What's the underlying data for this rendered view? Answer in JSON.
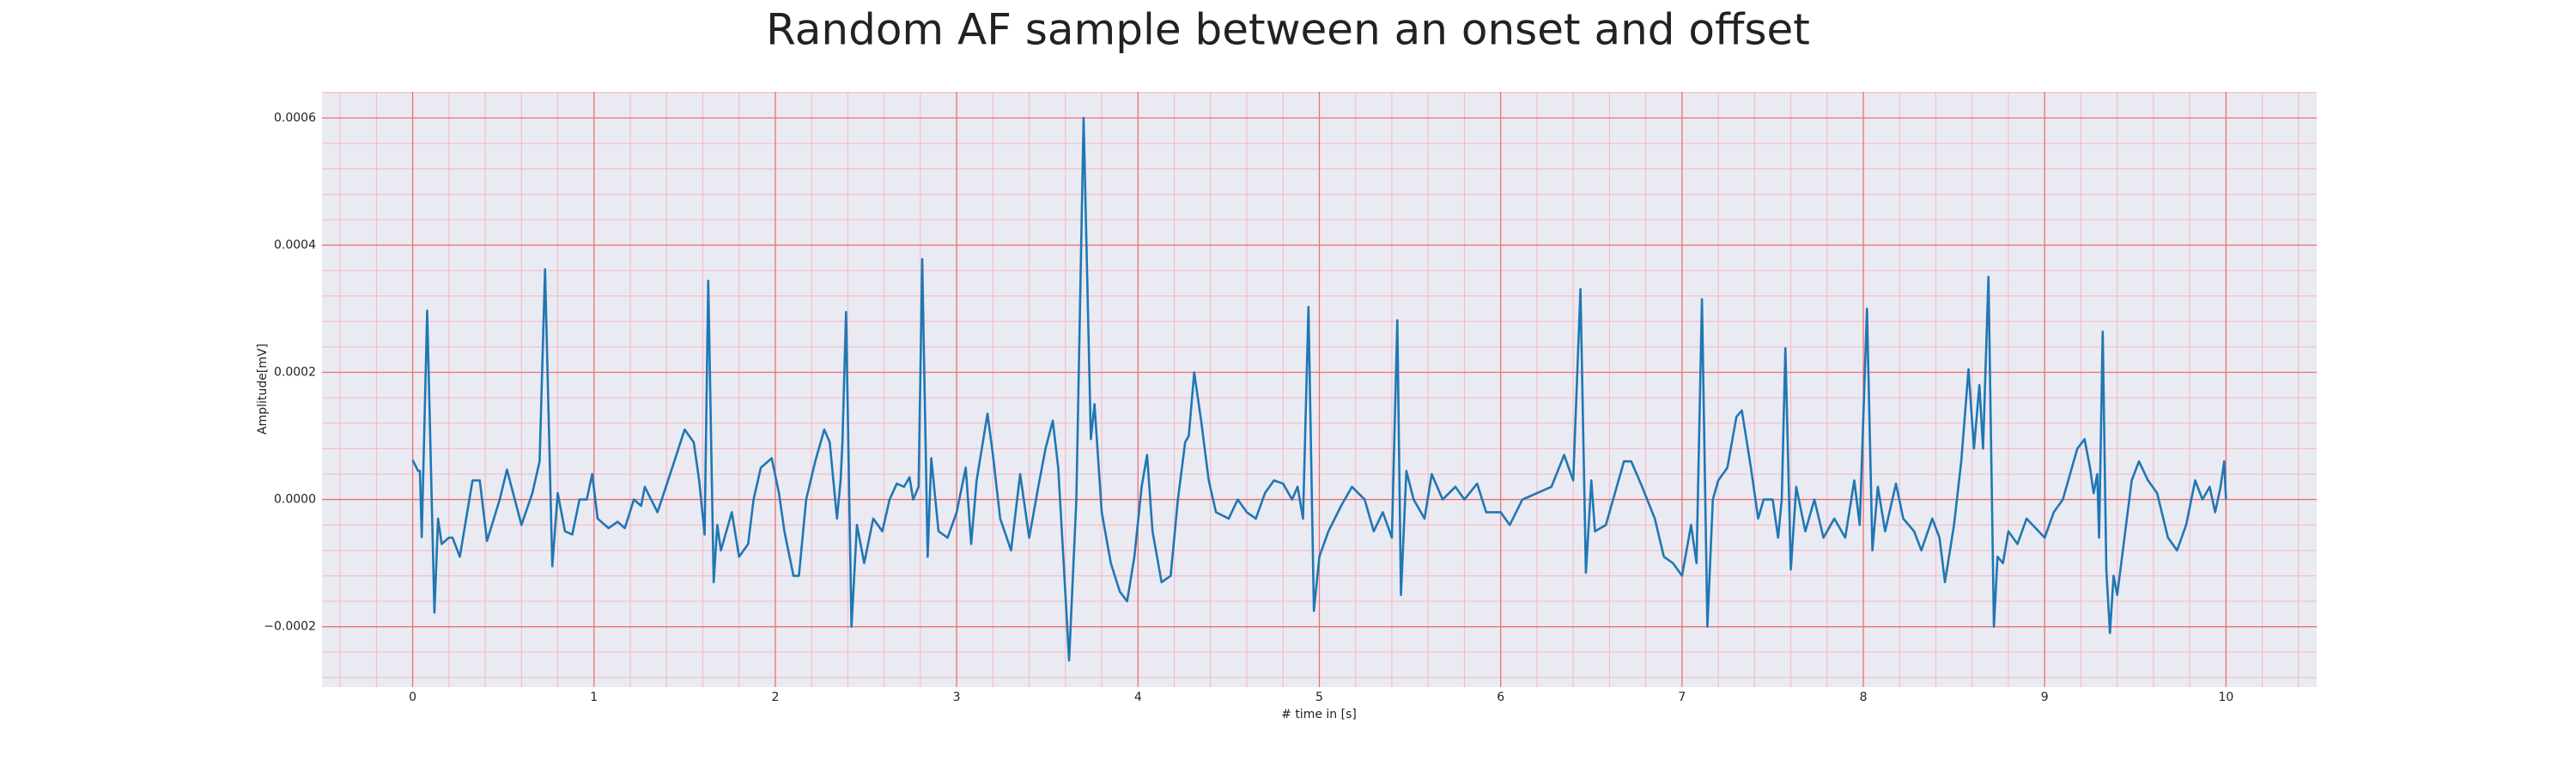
{
  "chart_data": {
    "type": "line",
    "title": "Random AF sample between an onset and offset",
    "x_label": "# time in [s]",
    "y_label": "Amplitude[mV]",
    "color": "#1f77b4",
    "grid": true,
    "xlim": [
      -0.5,
      10.5
    ],
    "ylim": [
      -0.000295,
      0.000641
    ],
    "xticks": [
      0,
      1,
      2,
      3,
      4,
      5,
      6,
      7,
      8,
      9,
      10
    ],
    "yticks": [
      {
        "value": -0.0002,
        "label": "−0.0002"
      },
      {
        "value": 0,
        "label": "0.0000"
      },
      0.0002,
      0.0004,
      0.0006
    ],
    "x": [
      0,
      0.03,
      0.04,
      0.05,
      0.08,
      0.12,
      0.14,
      0.16,
      0.2,
      0.22,
      0.26,
      0.33,
      0.37,
      0.41,
      0.48,
      0.52,
      0.6,
      0.66,
      0.7,
      0.73,
      0.77,
      0.8,
      0.84,
      0.88,
      0.92,
      0.96,
      0.99,
      1.02,
      1.08,
      1.13,
      1.17,
      1.22,
      1.26,
      1.28,
      1.35,
      1.42,
      1.5,
      1.55,
      1.58,
      1.61,
      1.63,
      1.66,
      1.68,
      1.7,
      1.76,
      1.8,
      1.85,
      1.88,
      1.92,
      1.98,
      2.02,
      2.05,
      2.1,
      2.13,
      2.17,
      2.22,
      2.27,
      2.3,
      2.32,
      2.34,
      2.36,
      2.37,
      2.39,
      2.42,
      2.45,
      2.49,
      2.54,
      2.59,
      2.63,
      2.67,
      2.71,
      2.74,
      2.76,
      2.79,
      2.81,
      2.84,
      2.86,
      2.9,
      2.95,
      3.0,
      3.05,
      3.08,
      3.11,
      3.17,
      3.2,
      3.24,
      3.3,
      3.35,
      3.4,
      3.45,
      3.49,
      3.53,
      3.56,
      3.59,
      3.62,
      3.66,
      3.7,
      3.74,
      3.76,
      3.8,
      3.85,
      3.9,
      3.94,
      3.98,
      4.02,
      4.05,
      4.08,
      4.13,
      4.18,
      4.22,
      4.26,
      4.28,
      4.31,
      4.35,
      4.39,
      4.43,
      4.5,
      4.55,
      4.6,
      4.65,
      4.7,
      4.75,
      4.8,
      4.85,
      4.88,
      4.91,
      4.94,
      4.97,
      5.0,
      5.05,
      5.12,
      5.18,
      5.25,
      5.3,
      5.35,
      5.4,
      5.43,
      5.45,
      5.48,
      5.52,
      5.58,
      5.62,
      5.68,
      5.75,
      5.8,
      5.87,
      5.92,
      6.0,
      6.05,
      6.12,
      6.2,
      6.28,
      6.35,
      6.4,
      6.44,
      6.47,
      6.5,
      6.52,
      6.58,
      6.62,
      6.68,
      6.72,
      6.78,
      6.85,
      6.9,
      6.95,
      7.0,
      7.05,
      7.08,
      7.11,
      7.14,
      7.17,
      7.2,
      7.25,
      7.3,
      7.33,
      7.38,
      7.42,
      7.45,
      7.5,
      7.53,
      7.55,
      7.57,
      7.6,
      7.63,
      7.68,
      7.73,
      7.78,
      7.84,
      7.9,
      7.95,
      7.98,
      8.02,
      8.05,
      8.08,
      8.12,
      8.18,
      8.22,
      8.28,
      8.32,
      8.38,
      8.42,
      8.45,
      8.5,
      8.54,
      8.58,
      8.61,
      8.64,
      8.66,
      8.69,
      8.72,
      8.74,
      8.77,
      8.8,
      8.85,
      8.9,
      8.95,
      9.0,
      9.05,
      9.1,
      9.13,
      9.18,
      9.22,
      9.25,
      9.27,
      9.29,
      9.3,
      9.32,
      9.34,
      9.36,
      9.38,
      9.4,
      9.44,
      9.48,
      9.52,
      9.57,
      9.62,
      9.68,
      9.73,
      9.78,
      9.83,
      9.87,
      9.91,
      9.94,
      9.97,
      9.99,
      10.0
    ],
    "values": [
      6.2e-05,
      4.5e-05,
      4.5e-05,
      -5.9e-05,
      0.000297,
      -0.000178,
      -3e-05,
      -7e-05,
      -6e-05,
      -6e-05,
      -9e-05,
      3e-05,
      3e-05,
      -6.5e-05,
      0,
      4.7e-05,
      -4e-05,
      1e-05,
      6e-05,
      0.000362,
      -0.000105,
      1e-05,
      -5e-05,
      -5.5e-05,
      0,
      0,
      4e-05,
      -3e-05,
      -4.5e-05,
      -3.5e-05,
      -4.5e-05,
      0,
      -1e-05,
      2e-05,
      -2e-05,
      4e-05,
      0.00011,
      9e-05,
      3e-05,
      -5.5e-05,
      0.000344,
      -0.00013,
      -4e-05,
      -8e-05,
      -2e-05,
      -9e-05,
      -7e-05,
      0,
      5e-05,
      6.5e-05,
      1e-05,
      -5e-05,
      -0.00012,
      -0.00012,
      0,
      6e-05,
      0.00011,
      9e-05,
      3e-05,
      -3e-05,
      3e-05,
      9e-05,
      0.000295,
      -0.0002,
      -4e-05,
      -0.0001,
      -3e-05,
      -5e-05,
      0,
      2.5e-05,
      2e-05,
      3.5e-05,
      0,
      2e-05,
      0.000378,
      -9e-05,
      6.5e-05,
      -5e-05,
      -6e-05,
      -2e-05,
      5e-05,
      -7e-05,
      3e-05,
      0.000135,
      7e-05,
      -3e-05,
      -8e-05,
      4e-05,
      -6e-05,
      2e-05,
      8e-05,
      0.000124,
      5e-05,
      -0.0001,
      -0.000253,
      0,
      0.0006,
      9.5e-05,
      0.00015,
      -2e-05,
      -0.0001,
      -0.000145,
      -0.00016,
      -9e-05,
      2e-05,
      7e-05,
      -5e-05,
      -0.00013,
      -0.00012,
      0,
      9e-05,
      0.0001,
      0.0002,
      0.00012,
      3e-05,
      -2e-05,
      -3e-05,
      0,
      -2e-05,
      -3e-05,
      1e-05,
      3e-05,
      2.5e-05,
      0,
      2e-05,
      -3e-05,
      0.000303,
      -0.000175,
      -9e-05,
      -5e-05,
      -1e-05,
      2e-05,
      0,
      -5e-05,
      -2e-05,
      -6e-05,
      0.000282,
      -0.00015,
      4.5e-05,
      0,
      -3e-05,
      4e-05,
      0,
      2e-05,
      0,
      2.5e-05,
      -2e-05,
      -2e-05,
      -4e-05,
      0,
      1e-05,
      2e-05,
      7e-05,
      3e-05,
      0.000331,
      -0.000115,
      3e-05,
      -5e-05,
      -4e-05,
      0,
      6e-05,
      6e-05,
      2e-05,
      -3e-05,
      -9e-05,
      -0.0001,
      -0.00012,
      -4e-05,
      -0.0001,
      0.000315,
      -0.0002,
      0,
      3e-05,
      5e-05,
      0.00013,
      0.00014,
      5e-05,
      -3e-05,
      0,
      0,
      -6e-05,
      0,
      0.000238,
      -0.00011,
      2e-05,
      -5e-05,
      0,
      -6e-05,
      -3e-05,
      -6e-05,
      3e-05,
      -4e-05,
      0.0003,
      -8e-05,
      2e-05,
      -5e-05,
      2.5e-05,
      -3e-05,
      -5e-05,
      -8e-05,
      -3e-05,
      -6e-05,
      -0.00013,
      -4e-05,
      6e-05,
      0.000205,
      8e-05,
      0.00018,
      8e-05,
      0.00035,
      -0.0002,
      -9e-05,
      -0.0001,
      -5e-05,
      -7e-05,
      -3e-05,
      -4.5e-05,
      -6e-05,
      -2e-05,
      0,
      3e-05,
      8e-05,
      9.5e-05,
      5e-05,
      1e-05,
      4e-05,
      -6e-05,
      0.000264,
      -0.00011,
      -0.00021,
      -0.00012,
      -0.00015,
      -6e-05,
      3e-05,
      6e-05,
      3e-05,
      1e-05,
      -6e-05,
      -8e-05,
      -4e-05,
      3e-05,
      0,
      2e-05,
      -2e-05,
      2e-05,
      6e-05,
      0
    ]
  }
}
